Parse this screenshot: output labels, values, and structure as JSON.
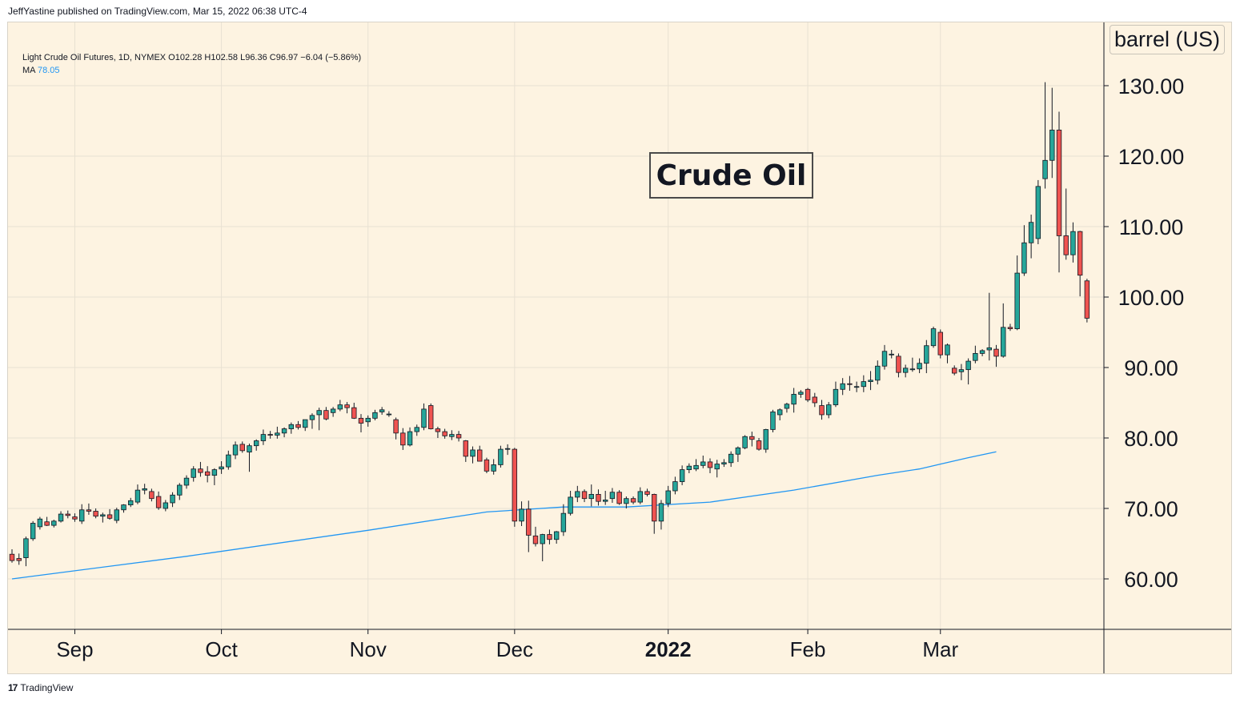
{
  "publisher_line": "JeffYastine published on TradingView.com, Mar 15, 2022 06:38 UTC-4",
  "legend": {
    "symbol_line": "Light Crude Oil Futures, 1D, NYMEX  O102.28  H102.58  L96.36  C96.97  −6.04 (−5.86%)",
    "ma_label": "MA",
    "ma_value": "78.05"
  },
  "annotation": "Crude Oil",
  "unit_label": "barrel (US)",
  "footer_logo": "TradingView",
  "colors": {
    "up": "#26a69a",
    "down": "#ef5350",
    "ma_line": "#2196f3",
    "background": "#fdf3e1",
    "grid": "#e8e1d2"
  },
  "chart_data": {
    "type": "candlestick",
    "y_ticks": [
      "60.00",
      "70.00",
      "80.00",
      "90.00",
      "100.00",
      "110.00",
      "120.00",
      "130.00"
    ],
    "ylim": [
      52,
      137
    ],
    "x_ticks": [
      {
        "label": "Sep",
        "index": 9
      },
      {
        "label": "Oct",
        "index": 30
      },
      {
        "label": "Nov",
        "index": 51
      },
      {
        "label": "Dec",
        "index": 72
      },
      {
        "label": "2022",
        "index": 94
      },
      {
        "label": "Feb",
        "index": 114
      },
      {
        "label": "Mar",
        "index": 133
      }
    ],
    "candles": [
      [
        63.5,
        64.2,
        62.3,
        62.6
      ],
      [
        62.9,
        63.6,
        62.0,
        62.6
      ],
      [
        63.0,
        66.0,
        61.8,
        65.7
      ],
      [
        65.7,
        68.2,
        65.4,
        67.9
      ],
      [
        67.4,
        68.8,
        67.0,
        68.5
      ],
      [
        68.1,
        68.8,
        67.5,
        67.6
      ],
      [
        67.6,
        68.4,
        67.3,
        68.2
      ],
      [
        68.2,
        69.6,
        68.0,
        69.2
      ],
      [
        69.2,
        69.7,
        68.6,
        69.0
      ],
      [
        68.8,
        69.3,
        68.1,
        68.5
      ],
      [
        68.2,
        70.6,
        67.8,
        69.8
      ],
      [
        69.8,
        70.7,
        69.1,
        69.6
      ],
      [
        69.6,
        70.0,
        68.6,
        68.9
      ],
      [
        68.9,
        69.4,
        68.0,
        69.1
      ],
      [
        69.1,
        69.9,
        68.4,
        68.6
      ],
      [
        68.3,
        70.1,
        67.9,
        69.8
      ],
      [
        69.8,
        70.6,
        69.4,
        70.5
      ],
      [
        70.5,
        71.5,
        70.2,
        71.1
      ],
      [
        70.9,
        73.4,
        70.6,
        72.6
      ],
      [
        72.6,
        73.5,
        72.0,
        72.8
      ],
      [
        72.4,
        72.8,
        71.0,
        71.4
      ],
      [
        71.7,
        72.4,
        69.8,
        70.1
      ],
      [
        70.0,
        71.2,
        69.6,
        70.8
      ],
      [
        70.8,
        72.3,
        70.2,
        71.9
      ],
      [
        71.9,
        73.6,
        71.2,
        73.3
      ],
      [
        73.3,
        74.7,
        72.8,
        74.3
      ],
      [
        74.4,
        76.0,
        73.8,
        75.6
      ],
      [
        75.6,
        76.6,
        74.5,
        75.1
      ],
      [
        75.2,
        76.0,
        73.7,
        74.7
      ],
      [
        74.7,
        75.7,
        73.3,
        75.5
      ],
      [
        75.6,
        76.7,
        74.9,
        75.9
      ],
      [
        75.9,
        78.2,
        75.5,
        77.6
      ],
      [
        77.6,
        79.5,
        77.0,
        79.0
      ],
      [
        79.1,
        79.5,
        77.9,
        78.2
      ],
      [
        78.0,
        79.2,
        75.2,
        78.9
      ],
      [
        78.9,
        79.8,
        78.2,
        79.6
      ],
      [
        79.6,
        81.2,
        79.0,
        80.5
      ],
      [
        80.5,
        81.0,
        79.9,
        80.4
      ],
      [
        80.4,
        81.6,
        79.9,
        80.7
      ],
      [
        80.7,
        81.5,
        80.1,
        81.3
      ],
      [
        81.3,
        82.2,
        80.6,
        81.9
      ],
      [
        81.9,
        82.4,
        81.2,
        81.5
      ],
      [
        81.5,
        82.6,
        81.0,
        82.6
      ],
      [
        82.6,
        83.5,
        81.3,
        83.2
      ],
      [
        83.3,
        84.3,
        81.1,
        83.9
      ],
      [
        83.9,
        84.4,
        82.5,
        82.7
      ],
      [
        83.6,
        84.4,
        83.0,
        84.1
      ],
      [
        84.1,
        85.4,
        83.8,
        84.7
      ],
      [
        84.7,
        85.1,
        83.5,
        84.3
      ],
      [
        84.3,
        85.0,
        82.7,
        82.8
      ],
      [
        82.8,
        83.4,
        80.8,
        82.1
      ],
      [
        82.3,
        83.2,
        81.6,
        82.8
      ],
      [
        82.8,
        84.0,
        82.5,
        83.6
      ],
      [
        83.7,
        84.4,
        83.3,
        84.0
      ],
      [
        83.4,
        83.8,
        83.0,
        83.4
      ],
      [
        82.6,
        82.9,
        79.8,
        80.7
      ],
      [
        80.7,
        81.4,
        78.3,
        79.0
      ],
      [
        79.0,
        81.5,
        78.8,
        80.9
      ],
      [
        80.9,
        81.9,
        80.3,
        81.5
      ],
      [
        81.5,
        84.9,
        81.1,
        84.1
      ],
      [
        84.6,
        84.9,
        81.2,
        81.3
      ],
      [
        81.3,
        81.6,
        80.0,
        80.9
      ],
      [
        80.9,
        81.3,
        79.9,
        80.3
      ],
      [
        80.2,
        81.1,
        79.7,
        80.5
      ],
      [
        80.5,
        81.0,
        79.5,
        80.0
      ],
      [
        79.6,
        79.7,
        76.6,
        77.4
      ],
      [
        77.4,
        78.8,
        76.4,
        78.3
      ],
      [
        78.3,
        78.9,
        76.7,
        76.7
      ],
      [
        76.9,
        77.2,
        75.0,
        75.3
      ],
      [
        75.3,
        77.0,
        74.8,
        76.2
      ],
      [
        76.2,
        78.9,
        75.8,
        78.4
      ],
      [
        78.5,
        79.1,
        77.6,
        78.5
      ],
      [
        78.4,
        78.6,
        67.4,
        68.2
      ],
      [
        68.2,
        71.0,
        67.5,
        69.9
      ],
      [
        69.9,
        71.1,
        63.8,
        66.2
      ],
      [
        66.1,
        67.4,
        64.6,
        65.0
      ],
      [
        65.0,
        66.4,
        62.5,
        66.3
      ],
      [
        66.3,
        67.0,
        64.9,
        65.6
      ],
      [
        65.6,
        66.8,
        65.0,
        66.7
      ],
      [
        66.7,
        70.6,
        66.1,
        69.3
      ],
      [
        69.3,
        72.5,
        69.0,
        71.6
      ],
      [
        71.6,
        73.2,
        70.9,
        72.4
      ],
      [
        72.4,
        72.7,
        70.9,
        71.4
      ],
      [
        71.4,
        73.4,
        70.3,
        72.0
      ],
      [
        72.0,
        72.7,
        70.4,
        71.0
      ],
      [
        71.0,
        72.5,
        70.5,
        71.2
      ],
      [
        71.4,
        72.9,
        70.8,
        72.3
      ],
      [
        72.3,
        72.6,
        70.5,
        70.7
      ],
      [
        70.7,
        71.7,
        70.0,
        71.4
      ],
      [
        71.4,
        71.7,
        70.6,
        70.9
      ],
      [
        70.9,
        73.0,
        70.6,
        72.4
      ],
      [
        72.4,
        72.8,
        71.7,
        72.0
      ],
      [
        72.0,
        72.1,
        66.4,
        68.2
      ],
      [
        68.2,
        71.2,
        67.0,
        70.7
      ],
      [
        70.7,
        73.2,
        70.2,
        72.5
      ],
      [
        72.5,
        74.5,
        72.0,
        73.8
      ],
      [
        73.8,
        76.1,
        73.3,
        75.5
      ],
      [
        75.5,
        76.4,
        75.0,
        76.0
      ],
      [
        75.6,
        77.0,
        75.3,
        76.1
      ],
      [
        76.1,
        77.5,
        75.7,
        76.6
      ],
      [
        76.6,
        77.1,
        75.0,
        75.8
      ],
      [
        75.6,
        76.9,
        74.4,
        76.3
      ],
      [
        76.3,
        77.0,
        75.9,
        76.5
      ],
      [
        76.5,
        78.1,
        75.9,
        77.7
      ],
      [
        77.7,
        78.8,
        76.6,
        78.6
      ],
      [
        78.6,
        80.4,
        78.4,
        80.2
      ],
      [
        80.2,
        80.9,
        78.8,
        79.8
      ],
      [
        79.6,
        80.0,
        78.2,
        78.4
      ],
      [
        78.4,
        81.3,
        77.9,
        81.2
      ],
      [
        81.2,
        84.0,
        80.8,
        83.7
      ],
      [
        83.3,
        84.2,
        82.5,
        84.0
      ],
      [
        84.2,
        85.0,
        83.6,
        84.8
      ],
      [
        84.8,
        87.1,
        83.6,
        86.2
      ],
      [
        86.2,
        86.8,
        85.7,
        86.5
      ],
      [
        86.9,
        87.1,
        85.1,
        85.4
      ],
      [
        85.8,
        86.4,
        84.4,
        85.0
      ],
      [
        84.6,
        85.4,
        82.6,
        83.3
      ],
      [
        83.3,
        85.1,
        82.8,
        84.7
      ],
      [
        84.7,
        88.0,
        84.4,
        86.9
      ],
      [
        86.9,
        88.5,
        86.1,
        87.7
      ],
      [
        87.7,
        88.8,
        86.7,
        87.6
      ],
      [
        87.2,
        88.0,
        86.5,
        87.3
      ],
      [
        87.3,
        88.9,
        86.5,
        88.0
      ],
      [
        88.0,
        89.5,
        86.8,
        88.2
      ],
      [
        88.2,
        91.0,
        87.6,
        90.2
      ],
      [
        90.2,
        93.2,
        89.7,
        92.3
      ],
      [
        91.8,
        92.5,
        91.3,
        91.9
      ],
      [
        91.6,
        92.0,
        88.6,
        89.3
      ],
      [
        89.3,
        90.4,
        88.6,
        89.9
      ],
      [
        89.8,
        91.4,
        89.4,
        89.8
      ],
      [
        89.8,
        91.3,
        89.2,
        90.6
      ],
      [
        90.6,
        93.9,
        89.2,
        93.1
      ],
      [
        93.1,
        95.8,
        92.8,
        95.5
      ],
      [
        95.0,
        95.4,
        91.3,
        91.8
      ],
      [
        91.8,
        93.4,
        90.6,
        93.2
      ],
      [
        89.9,
        90.3,
        88.9,
        89.2
      ],
      [
        89.4,
        90.5,
        88.2,
        89.7
      ],
      [
        89.7,
        91.3,
        87.6,
        90.9
      ],
      [
        91.0,
        93.1,
        90.6,
        92.0
      ],
      [
        92.0,
        92.6,
        91.6,
        92.4
      ],
      [
        92.5,
        100.6,
        91.0,
        92.8
      ],
      [
        92.6,
        93.2,
        90.1,
        91.6
      ],
      [
        91.6,
        99.1,
        91.4,
        95.7
      ],
      [
        95.7,
        96.2,
        95.2,
        95.5
      ],
      [
        95.5,
        105.9,
        95.3,
        103.4
      ],
      [
        103.4,
        110.2,
        103.0,
        107.7
      ],
      [
        107.7,
        111.7,
        105.5,
        110.6
      ],
      [
        108.3,
        116.6,
        107.5,
        115.7
      ],
      [
        116.8,
        130.5,
        115.4,
        119.4
      ],
      [
        119.4,
        129.7,
        116.9,
        123.7
      ],
      [
        123.7,
        126.3,
        103.5,
        108.7
      ],
      [
        108.7,
        115.4,
        105.3,
        106.0
      ],
      [
        106.0,
        110.6,
        104.9,
        109.3
      ],
      [
        109.3,
        109.4,
        100.1,
        103.1
      ],
      [
        102.3,
        102.6,
        96.4,
        97.0
      ]
    ],
    "ma": {
      "label": "MA",
      "last_value": 78.05,
      "points": [
        [
          0,
          60.0
        ],
        [
          25,
          63.2
        ],
        [
          51,
          66.9
        ],
        [
          68,
          69.5
        ],
        [
          79,
          70.2
        ],
        [
          88,
          70.2
        ],
        [
          100,
          70.9
        ],
        [
          112,
          72.6
        ],
        [
          124,
          74.7
        ],
        [
          130,
          75.6
        ],
        [
          133,
          76.3
        ],
        [
          137,
          77.2
        ],
        [
          141,
          78.05
        ]
      ]
    }
  }
}
